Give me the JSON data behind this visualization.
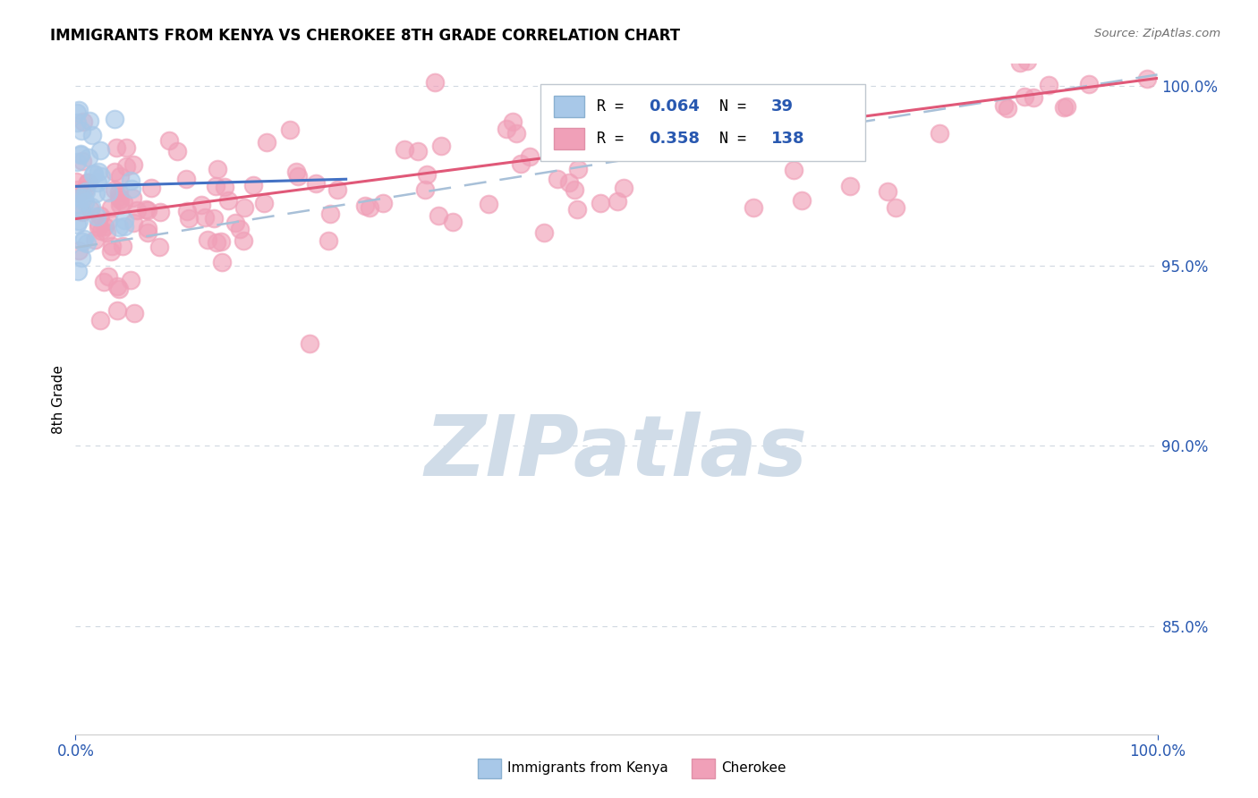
{
  "title": "IMMIGRANTS FROM KENYA VS CHEROKEE 8TH GRADE CORRELATION CHART",
  "source": "Source: ZipAtlas.com",
  "ylabel": "8th Grade",
  "xlim": [
    0.0,
    1.0
  ],
  "ylim": [
    0.82,
    1.006
  ],
  "x_tick_labels": [
    "0.0%",
    "100.0%"
  ],
  "y_tick_positions": [
    0.85,
    0.9,
    0.95,
    1.0
  ],
  "y_tick_labels": [
    "85.0%",
    "90.0%",
    "95.0%",
    "100.0%"
  ],
  "kenya_line_color": "#4472c4",
  "kenya_scatter_color": "#a8c8e8",
  "cherokee_scatter_color": "#f0a0b8",
  "cherokee_line_color": "#e05878",
  "dashed_line_color": "#a8c0d8",
  "grid_color": "#d0d8e0",
  "watermark": "ZIPatlas",
  "watermark_color": "#d0dce8",
  "legend_R1": "0.064",
  "legend_N1": "39",
  "legend_R2": "0.358",
  "legend_N2": "138",
  "legend_color1": "#a8c8e8",
  "legend_color2": "#f0a0b8",
  "text_blue": "#2858b0",
  "bottom_legend_label1": "Immigrants from Kenya",
  "bottom_legend_label2": "Cherokee"
}
